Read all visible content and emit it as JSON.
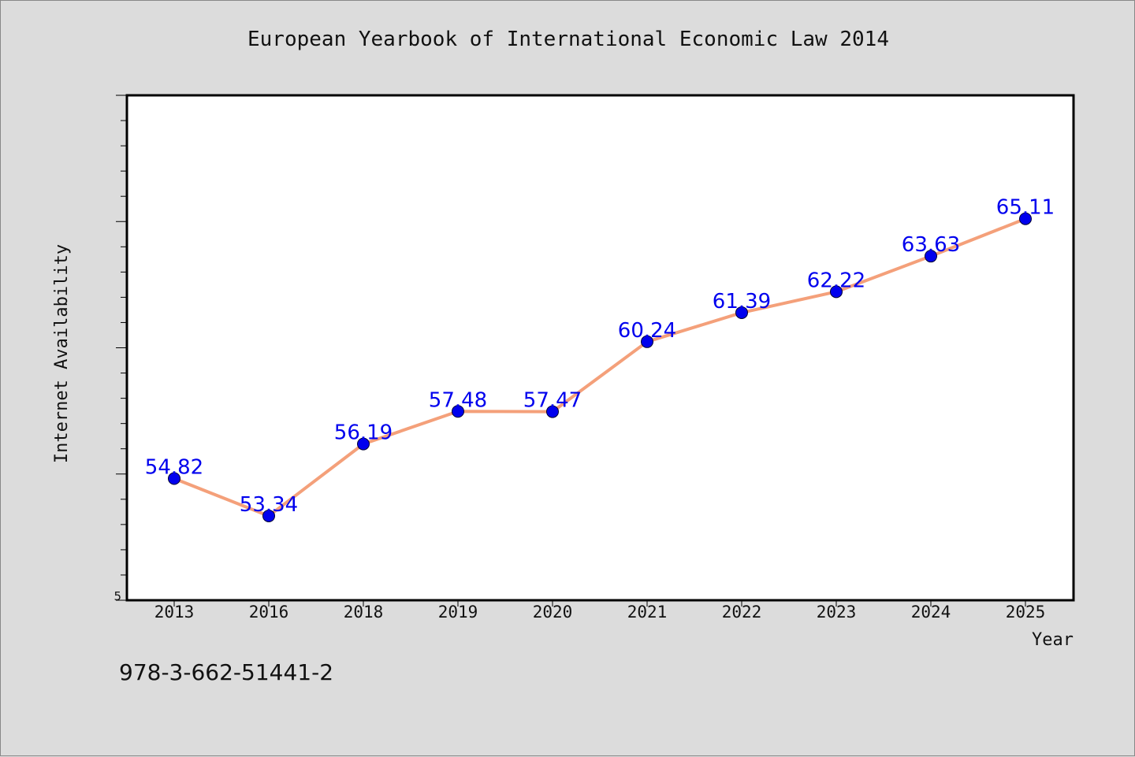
{
  "figure": {
    "isbn": "978-3-662-51441-2"
  },
  "colors": {
    "background": "#dcdcdc",
    "plot_background": "#ffffff",
    "line": "#f4a07a",
    "marker": "#0000ee",
    "data_label": "#0000ee"
  },
  "chart_data": {
    "type": "line",
    "title": "European Yearbook of International Economic Law 2014",
    "xlabel": "Year",
    "ylabel": "Internet Availability",
    "categories": [
      "2013",
      "2016",
      "2018",
      "2019",
      "2020",
      "2021",
      "2022",
      "2023",
      "2024",
      "2025"
    ],
    "values": [
      54.82,
      53.34,
      56.19,
      57.48,
      57.47,
      60.24,
      61.39,
      62.22,
      63.63,
      65.11
    ],
    "data_labels": [
      "54.82",
      "53.34",
      "56.19",
      "57.48",
      "57.47",
      "60.24",
      "61.39",
      "62.22",
      "63.63",
      "65.11"
    ],
    "ylim": [
      50,
      70
    ],
    "ytick_labels": [
      "5"
    ],
    "grid": false,
    "legend": "none"
  }
}
